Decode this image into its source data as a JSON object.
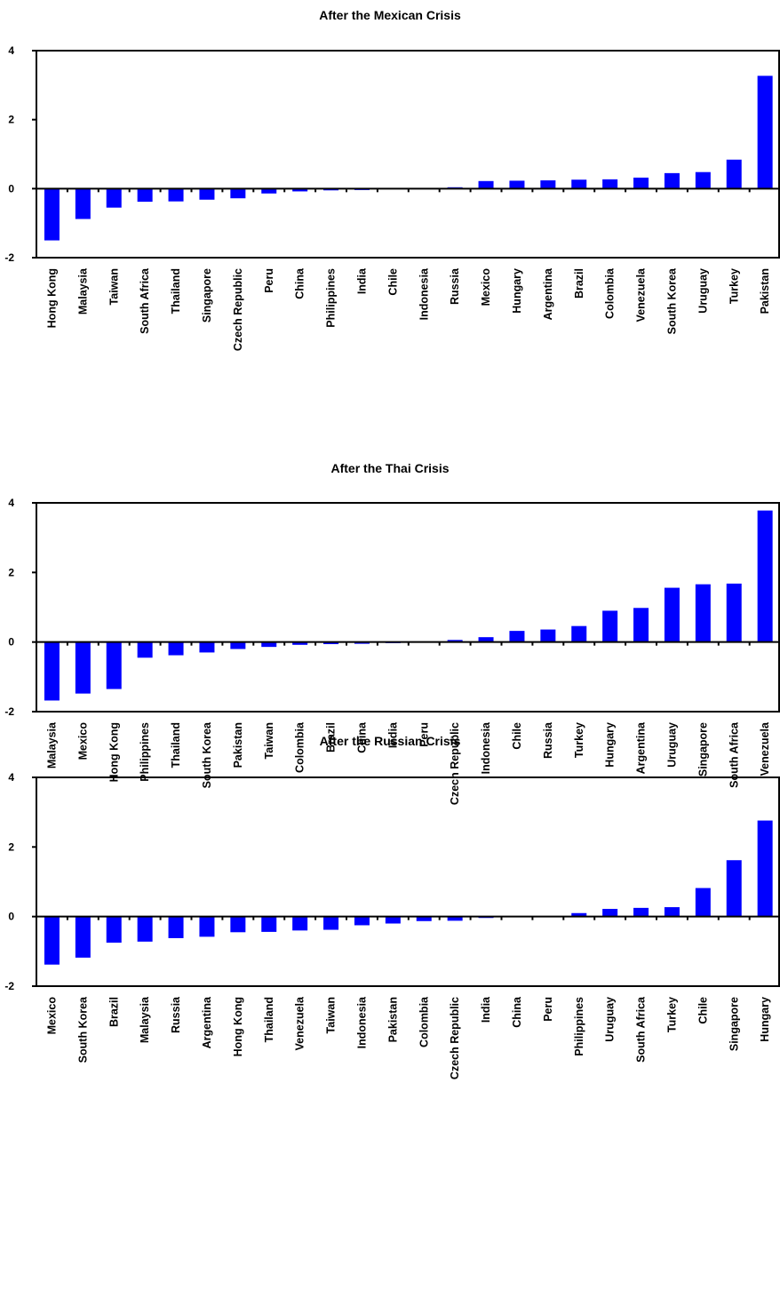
{
  "chart_data": [
    {
      "type": "bar",
      "title": "After the Mexican Crisis",
      "xlabel": "",
      "ylabel": "",
      "ylim": [
        -2,
        4
      ],
      "yticks": [
        "4",
        "2",
        "0",
        "-2"
      ],
      "bar_color": "#0000ff",
      "categories": [
        "Hong Kong",
        "Malaysia",
        "Taiwan",
        "South Africa",
        "Thailand",
        "Singapore",
        "Czech Republic",
        "Peru",
        "China",
        "Philippines",
        "India",
        "Chile",
        "Indonesia",
        "Russia",
        "Mexico",
        "Hungary",
        "Argentina",
        "Brazil",
        "Colombia",
        "Venezuela",
        "South Korea",
        "Uruguay",
        "Turkey",
        "Pakistan"
      ],
      "values": [
        -1.5,
        -0.88,
        -0.55,
        -0.38,
        -0.37,
        -0.32,
        -0.28,
        -0.14,
        -0.08,
        -0.05,
        -0.04,
        -0.01,
        -0.01,
        0.04,
        0.22,
        0.23,
        0.24,
        0.26,
        0.27,
        0.32,
        0.45,
        0.48,
        0.84,
        3.27
      ]
    },
    {
      "type": "bar",
      "title": "After the Thai Crisis",
      "xlabel": "",
      "ylabel": "",
      "ylim": [
        -2,
        4
      ],
      "yticks": [
        "4",
        "2",
        "0",
        "-2"
      ],
      "bar_color": "#0000ff",
      "categories": [
        "Malaysia",
        "Mexico",
        "Hong Kong",
        "Philippines",
        "Thailand",
        "South Korea",
        "Pakistan",
        "Taiwan",
        "Colombia",
        "Brazil",
        "China",
        "India",
        "Peru",
        "Czech Republic",
        "Indonesia",
        "Chile",
        "Russia",
        "Turkey",
        "Hungary",
        "Argentina",
        "Uruguay",
        "Singapore",
        "South Africa",
        "Venezuela"
      ],
      "values": [
        -1.68,
        -1.48,
        -1.35,
        -0.45,
        -0.38,
        -0.3,
        -0.2,
        -0.14,
        -0.08,
        -0.06,
        -0.05,
        -0.03,
        -0.01,
        0.06,
        0.14,
        0.32,
        0.36,
        0.46,
        0.9,
        0.98,
        1.56,
        1.66,
        1.68,
        3.78
      ]
    },
    {
      "type": "bar",
      "title": "After the Russian Crisis",
      "xlabel": "",
      "ylabel": "",
      "ylim": [
        -2,
        4
      ],
      "yticks": [
        "4",
        "2",
        "0",
        "-2"
      ],
      "bar_color": "#0000ff",
      "categories": [
        "Mexico",
        "South Korea",
        "Brazil",
        "Malaysia",
        "Russia",
        "Argentina",
        "Hong Kong",
        "Thailand",
        "Venezuela",
        "Taiwan",
        "Indonesia",
        "Pakistan",
        "Colombia",
        "Czech Republic",
        "India",
        "China",
        "Peru",
        "Philippines",
        "Uruguay",
        "South Africa",
        "Turkey",
        "Chile",
        "Singapore",
        "Hungary"
      ],
      "values": [
        -1.38,
        -1.18,
        -0.75,
        -0.72,
        -0.62,
        -0.58,
        -0.45,
        -0.44,
        -0.4,
        -0.38,
        -0.25,
        -0.2,
        -0.13,
        -0.12,
        -0.04,
        -0.02,
        0.0,
        0.1,
        0.22,
        0.25,
        0.27,
        0.82,
        1.62,
        2.76
      ]
    }
  ]
}
